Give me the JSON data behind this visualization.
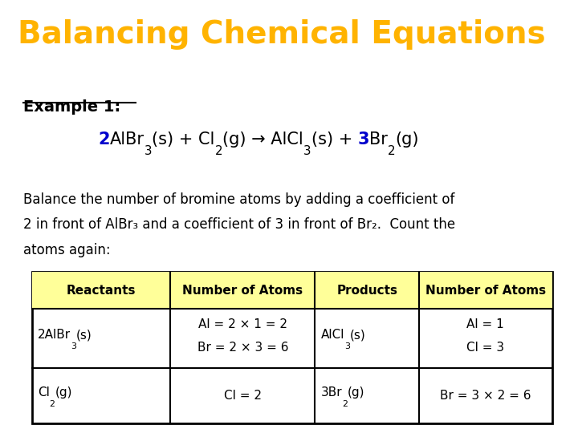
{
  "title": "Balancing Chemical Equations",
  "title_color": "#FFB300",
  "title_bg": "#000000",
  "title_fontsize": 28,
  "body_bg": "#FFFFFF",
  "example_label": "Example 1:",
  "body_text1": "Balance the number of bromine atoms by adding a coefficient of",
  "body_text2": "2 in front of AlBr₃ and a coefficient of 3 in front of Br₂.  Count the",
  "body_text3": "atoms again:",
  "coeff_color": "#0000CC",
  "table_header_bg": "#FFFF99",
  "col_headers": [
    "Reactants",
    "Number of Atoms",
    "Products",
    "Number of Atoms"
  ],
  "col_sep": [
    0.055,
    0.295,
    0.545,
    0.725,
    0.955
  ],
  "row_sep": [
    0.435,
    0.335,
    0.175,
    0.025
  ],
  "table_fontsize": 11
}
